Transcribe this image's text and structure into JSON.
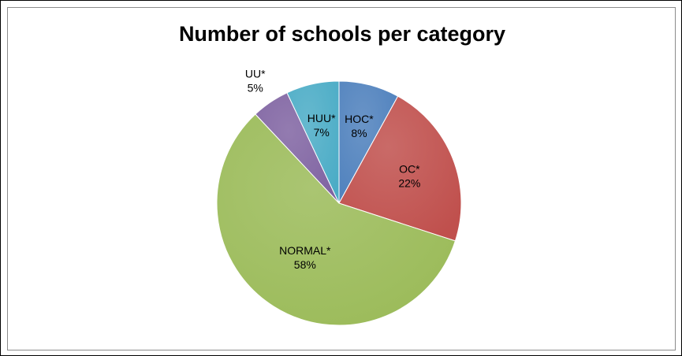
{
  "chart_data": {
    "type": "pie",
    "title": "Number of schools per category",
    "slices": [
      {
        "label": "HOC*",
        "percent_label": "8%",
        "value": 8,
        "color": "#4F81BD"
      },
      {
        "label": "OC*",
        "percent_label": "22%",
        "value": 22,
        "color": "#C0504D"
      },
      {
        "label": "NORMAL*",
        "percent_label": "58%",
        "value": 58,
        "color": "#9BBB59"
      },
      {
        "label": "UU*",
        "percent_label": "5%",
        "value": 5,
        "color": "#8064A2"
      },
      {
        "label": "HUU*",
        "percent_label": "7%",
        "value": 7,
        "color": "#4BACC6"
      }
    ],
    "legend": "none",
    "style": "3d-shaded"
  }
}
